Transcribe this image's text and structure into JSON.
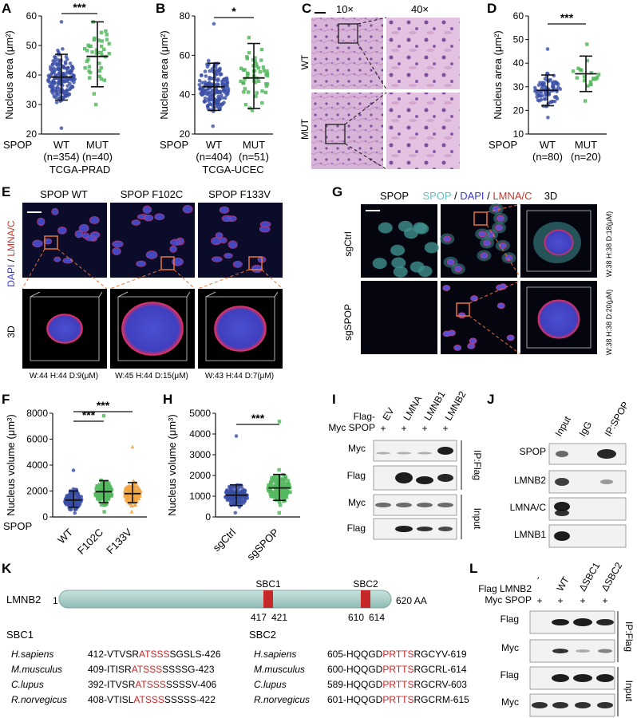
{
  "colors": {
    "wt_blue": "#3b4fa8",
    "mut_green": "#55b85f",
    "f133v_orange": "#f2a541",
    "sbc_red": "#c62828",
    "bar_teal": "#a9cfc9"
  },
  "panel_letters": [
    "A",
    "B",
    "C",
    "D",
    "E",
    "F",
    "G",
    "H",
    "I",
    "J",
    "K",
    "L"
  ],
  "common": {
    "nucleus_area_label": "Nucleus area (μm²)",
    "nucleus_volume_label": "Nucleus volume (μm³)",
    "spop": "SPOP",
    "wt": "WT",
    "mut": "MUT",
    "sig3": "***",
    "sig1": "*"
  },
  "chart_data": [
    {
      "id": "A",
      "type": "scatter",
      "ylabel": "Nucleus area (μm²)",
      "ylim": [
        20,
        60
      ],
      "yticks": [
        20,
        30,
        40,
        50,
        60
      ],
      "categories": [
        "WT",
        "MUT"
      ],
      "ns": [
        "(n=354)",
        "(n=40)"
      ],
      "xlabel": "TCGA-PRAD",
      "series": [
        {
          "name": "WT",
          "mean": 39.3,
          "sd_low": 31.5,
          "sd_high": 47,
          "min": 22,
          "max": 58,
          "n": 354
        },
        {
          "name": "MUT",
          "mean": 46.3,
          "sd_low": 36,
          "sd_high": 58,
          "min": 30,
          "max": 58,
          "n": 40
        }
      ],
      "significance": "***"
    },
    {
      "id": "B",
      "type": "scatter",
      "ylabel": "Nucleus area (μm²)",
      "ylim": [
        20,
        80
      ],
      "yticks": [
        20,
        40,
        60,
        80
      ],
      "categories": [
        "WT",
        "MUT"
      ],
      "ns": [
        "(n=404)",
        "(n=51)"
      ],
      "xlabel": "TCGA-UCEC",
      "series": [
        {
          "name": "WT",
          "mean": 44,
          "sd_low": 32,
          "sd_high": 56,
          "min": 24,
          "max": 76,
          "n": 404
        },
        {
          "name": "MUT",
          "mean": 48.5,
          "sd_low": 33,
          "sd_high": 66,
          "min": 32,
          "max": 69,
          "n": 51
        }
      ],
      "significance": "*"
    },
    {
      "id": "D",
      "type": "scatter",
      "ylabel": "Nucleus area (μm²)",
      "ylim": [
        10,
        60
      ],
      "yticks": [
        10,
        20,
        30,
        40,
        50,
        60
      ],
      "categories": [
        "WT",
        "MUT"
      ],
      "ns": [
        "(n=80)",
        "(n=20)"
      ],
      "xlabel": "",
      "series": [
        {
          "name": "WT",
          "mean": 28.5,
          "sd_low": 22,
          "sd_high": 35,
          "min": 17,
          "max": 46,
          "n": 80
        },
        {
          "name": "MUT",
          "mean": 35.5,
          "sd_low": 28,
          "sd_high": 43,
          "min": 24,
          "max": 48,
          "n": 20
        }
      ],
      "significance": "***"
    },
    {
      "id": "F",
      "type": "scatter",
      "ylabel": "Nucleus volume (μm³)",
      "ylim": [
        0,
        8000
      ],
      "yticks": [
        0,
        2000,
        4000,
        6000,
        8000
      ],
      "categories": [
        "WT",
        "F102C",
        "F133V"
      ],
      "ns": [],
      "xlabel": "",
      "series": [
        {
          "name": "WT",
          "mean": 1300,
          "sd_low": 750,
          "sd_high": 2000,
          "min": 300,
          "max": 3600
        },
        {
          "name": "F102C",
          "mean": 1950,
          "sd_low": 1100,
          "sd_high": 2800,
          "min": 400,
          "max": 7800
        },
        {
          "name": "F133V",
          "mean": 1800,
          "sd_low": 1100,
          "sd_high": 2650,
          "min": 400,
          "max": 5400
        }
      ],
      "significance": [
        "***",
        "***"
      ]
    },
    {
      "id": "H",
      "type": "scatter",
      "ylabel": "Nucleus volume (μm³)",
      "ylim": [
        0,
        5000
      ],
      "yticks": [
        0,
        1000,
        2000,
        3000,
        4000,
        5000
      ],
      "categories": [
        "sgCtrl",
        "sgSPOP"
      ],
      "ns": [],
      "xlabel": "",
      "series": [
        {
          "name": "sgCtrl",
          "mean": 1050,
          "sd_low": 550,
          "sd_high": 1550,
          "min": 200,
          "max": 3900
        },
        {
          "name": "sgSPOP",
          "mean": 1400,
          "sd_low": 800,
          "sd_high": 2050,
          "min": 200,
          "max": 4600
        }
      ],
      "significance": "***"
    }
  ],
  "panelC": {
    "mag": [
      "10×",
      "40×"
    ],
    "rows": [
      "WT",
      "MUT"
    ]
  },
  "panelE": {
    "ylabel_dapi": "DAPI",
    "ylabel_sep": " / ",
    "ylabel_lmna": "LMNA/C",
    "titles": [
      "SPOP WT",
      "SPOP F102C",
      "SPOP F133V"
    ],
    "label_3d": "3D",
    "dims": [
      "W:44 H:44 D:9(μM)",
      "W:45 H:44 D:15(μM)",
      "W:43 H:44 D:7(μM)"
    ]
  },
  "panelG": {
    "header_spop": "SPOP",
    "header_spop2": "SPOP",
    "sep": " / ",
    "header_dapi": "DAPI",
    "header_lmna": "LMNA/C",
    "header_3d": "3D",
    "rows": [
      "sgCtrl",
      "sgSPOP"
    ],
    "dims": [
      "W:38 H:38 D:18(μM)",
      "W:38 H:38 D:20(μM)"
    ]
  },
  "panelI": {
    "flag_prefix": "Flag-",
    "myc_spop": "Myc SPOP",
    "lanes": [
      "EV",
      "LMNA",
      "LMNB1",
      "LMNB2"
    ],
    "plus": [
      "+",
      "+",
      "+",
      "+"
    ],
    "rows": [
      "Myc",
      "Flag",
      "Myc",
      "Flag"
    ],
    "side": [
      "IP:Flag",
      "Input"
    ]
  },
  "panelJ": {
    "lanes": [
      "Input",
      "IgG",
      "IP:SPOP"
    ],
    "rows": [
      "SPOP",
      "LMNB2",
      "LMNA/C",
      "LMNB1"
    ]
  },
  "panelK": {
    "protein": "LMNB2",
    "start": "1",
    "end": "620 AA",
    "sbc_names": [
      "SBC1",
      "SBC2"
    ],
    "sbc1_pos": [
      "417",
      "421"
    ],
    "sbc2_pos": [
      "610",
      "614"
    ],
    "sbc1": [
      {
        "species": "H.sapiens",
        "pre": "412-VTVSR",
        "motif": "ATSSS",
        "post": "SGSLS-426"
      },
      {
        "species": "M.musculus",
        "pre": "409-ITISR",
        "motif": "ATSSS",
        "post": "SSSSG-423"
      },
      {
        "species": "C.lupus",
        "pre": "392-ITVSR",
        "motif": "ATSSS",
        "post": "SSSSV-406"
      },
      {
        "species": "R.norvegicus",
        "pre": "408-VTISL",
        "motif": "ATSSS",
        "post": "SSSSS-422"
      }
    ],
    "sbc2": [
      {
        "species": "H.sapiens",
        "pre": "605-HQQGD",
        "motif": "PRTTS",
        "post": "RGCYV-619"
      },
      {
        "species": "M.musculus",
        "pre": "600-HQQGD",
        "motif": "PRTTS",
        "post": "RGCRL-614"
      },
      {
        "species": "C.lupus",
        "pre": "589-HQQGD",
        "motif": "PRTTS",
        "post": "RGCRV-603"
      },
      {
        "species": "R.norvegicus",
        "pre": "601-HQQGD",
        "motif": "PRTTS",
        "post": "RGCRM-615"
      }
    ]
  },
  "panelL": {
    "flag_lmnb2": "Flag LMNB2",
    "myc_spop": "Myc SPOP",
    "lanes": [
      "-",
      "WT",
      "ΔSBC1",
      "ΔSBC2"
    ],
    "plus": [
      "+",
      "+",
      "+",
      "+"
    ],
    "rows": [
      "Flag",
      "Myc",
      "Flag",
      "Myc"
    ],
    "side": [
      "IP:Flag",
      "Input"
    ]
  }
}
